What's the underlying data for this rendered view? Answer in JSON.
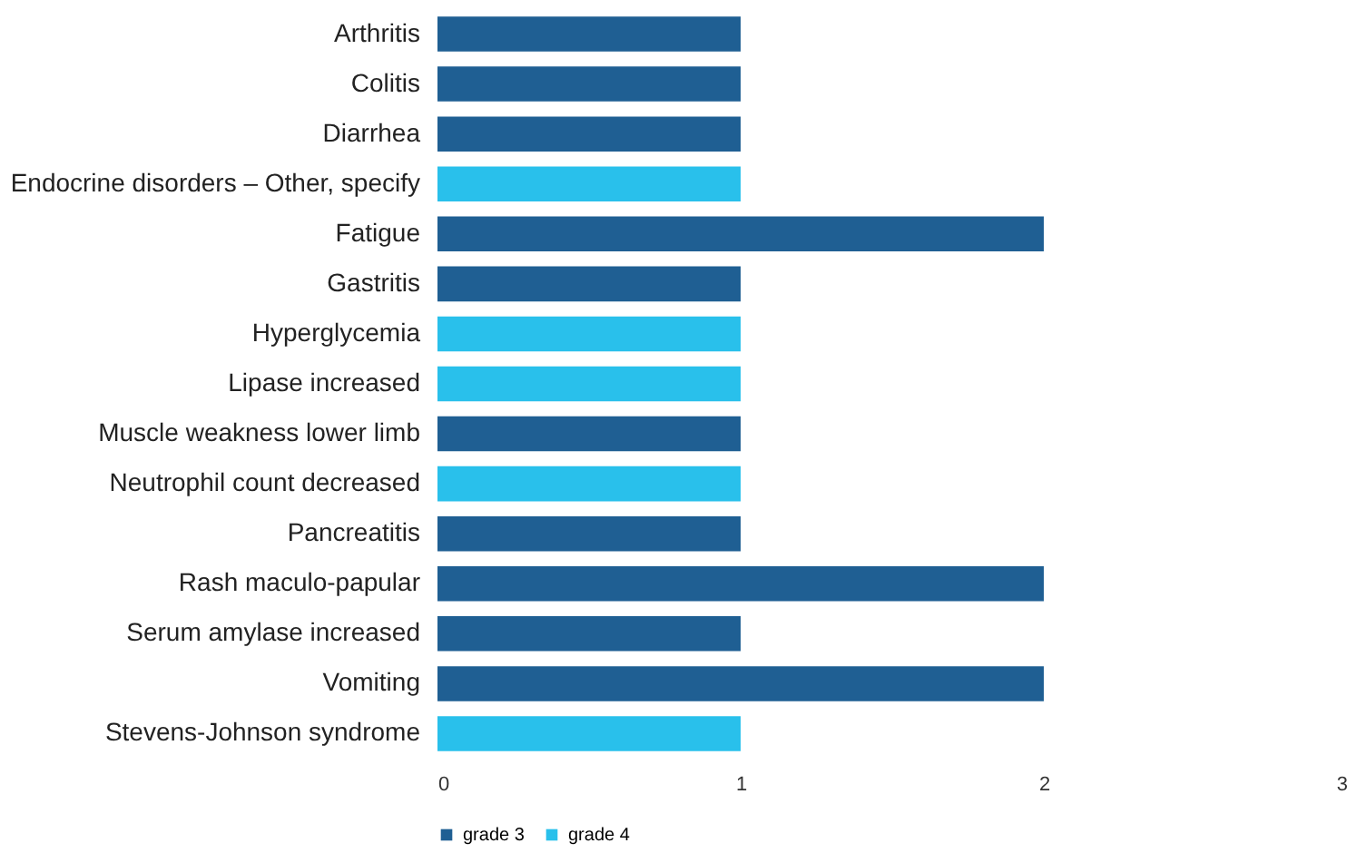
{
  "chart_data": {
    "type": "bar",
    "orientation": "horizontal",
    "categories": [
      "Arthritis",
      "Colitis",
      "Diarrhea",
      "Endocrine disorders – Other, specify",
      "Fatigue",
      "Gastritis",
      "Hyperglycemia",
      "Lipase increased",
      "Muscle weakness lower limb",
      "Neutrophil count decreased",
      "Pancreatitis",
      "Rash maculo-papular",
      "Serum amylase increased",
      "Vomiting",
      "Stevens-Johnson syndrome"
    ],
    "series": [
      {
        "name": "grade 3",
        "color": "#1f5f93",
        "values": [
          1,
          1,
          1,
          null,
          2,
          1,
          null,
          null,
          1,
          null,
          1,
          2,
          1,
          2,
          null
        ]
      },
      {
        "name": "grade 4",
        "color": "#29c0eb",
        "values": [
          null,
          null,
          null,
          1,
          null,
          null,
          1,
          1,
          null,
          1,
          null,
          null,
          null,
          null,
          1
        ]
      }
    ],
    "xlim": [
      0,
      3
    ],
    "xticks": [
      0,
      1,
      2,
      3
    ],
    "grid": false,
    "legend": "bottom"
  }
}
